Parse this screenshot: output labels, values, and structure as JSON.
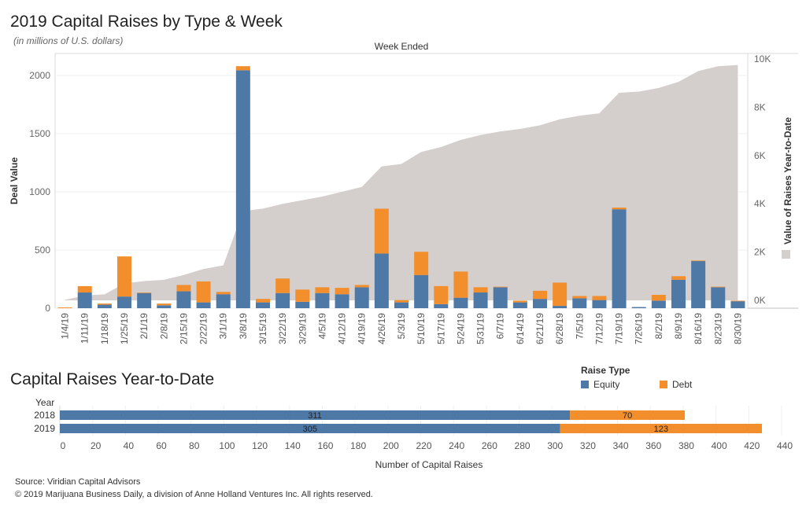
{
  "title": "2019 Capital Raises by Type & Week",
  "subtitle": "(in millions of U.S. dollars)",
  "ytd_title": "Capital Raises Year-to-Date",
  "legend": {
    "title": "Raise Type",
    "items": [
      {
        "label": "Equity",
        "color": "#4e79a7"
      },
      {
        "label": "Debt",
        "color": "#f28e2b"
      }
    ]
  },
  "footer": {
    "source": "Source: Viridian Capital Advisors",
    "copyright": "© 2019 Marijuana Business Daily, a division of Anne Holland Ventures Inc. All rights reserved."
  },
  "chart_data": [
    {
      "type": "bar",
      "stacked": true,
      "x_title": "Week Ended",
      "ylabel": "Deal Value",
      "y2label": "Value of Raises Year-to-Date",
      "ylim": [
        0,
        2100
      ],
      "yticks": [
        0,
        500,
        1000,
        1500,
        2000
      ],
      "y2lim": [
        0,
        10000
      ],
      "y2ticks": [
        0,
        2000,
        4000,
        6000,
        8000,
        10000
      ],
      "y2ticklabels": [
        "0K",
        "2K",
        "4K",
        "6K",
        "8K",
        "10K"
      ],
      "categories": [
        "1/4/19",
        "1/11/19",
        "1/18/19",
        "1/25/19",
        "2/1/19",
        "2/8/19",
        "2/15/19",
        "2/22/19",
        "3/1/19",
        "3/8/19",
        "3/15/19",
        "3/22/19",
        "3/29/19",
        "4/5/19",
        "4/12/19",
        "4/19/19",
        "4/26/19",
        "5/3/19",
        "5/10/19",
        "5/17/19",
        "5/24/19",
        "5/31/19",
        "6/7/19",
        "6/14/19",
        "6/21/19",
        "6/28/19",
        "7/5/19",
        "7/12/19",
        "7/19/19",
        "7/26/19",
        "8/2/19",
        "8/9/19",
        "8/16/19",
        "8/23/19",
        "8/30/19"
      ],
      "series": [
        {
          "name": "Equity",
          "color": "#4e79a7",
          "values": [
            0,
            135,
            30,
            100,
            130,
            25,
            145,
            50,
            120,
            2045,
            50,
            130,
            55,
            130,
            120,
            180,
            470,
            50,
            285,
            35,
            90,
            135,
            180,
            50,
            80,
            20,
            85,
            70,
            850,
            10,
            65,
            245,
            405,
            180,
            60
          ]
        },
        {
          "name": "Debt",
          "color": "#f28e2b",
          "values": [
            0,
            55,
            10,
            345,
            5,
            15,
            55,
            180,
            20,
            35,
            30,
            125,
            105,
            50,
            55,
            20,
            385,
            20,
            200,
            155,
            225,
            45,
            5,
            15,
            70,
            200,
            20,
            35,
            15,
            0,
            50,
            30,
            5,
            5,
            5
          ]
        }
      ],
      "area": {
        "name": "Value of Raises Year-to-Date",
        "color": "#d4cfcd",
        "values": [
          20,
          200,
          250,
          700,
          800,
          850,
          1050,
          1300,
          1450,
          3700,
          3800,
          4000,
          4150,
          4300,
          4500,
          4700,
          5550,
          5650,
          6150,
          6350,
          6650,
          6850,
          7000,
          7100,
          7250,
          7500,
          7650,
          7750,
          8600,
          8650,
          8800,
          9050,
          9500,
          9700,
          9750
        ]
      },
      "grid": true
    },
    {
      "type": "bar",
      "orientation": "horizontal",
      "stacked": true,
      "y_title": "Year",
      "xlabel": "Number of Capital Raises",
      "categories": [
        "2018",
        "2019"
      ],
      "series": [
        {
          "name": "Equity",
          "color": "#4e79a7",
          "values": [
            311,
            305
          ]
        },
        {
          "name": "Debt",
          "color": "#f28e2b",
          "values": [
            70,
            123
          ]
        }
      ],
      "xlim": [
        0,
        440
      ],
      "xticks": [
        0,
        20,
        40,
        60,
        80,
        100,
        120,
        140,
        160,
        180,
        200,
        220,
        240,
        260,
        280,
        300,
        320,
        340,
        360,
        380,
        400,
        420,
        440
      ],
      "grid": true
    }
  ]
}
